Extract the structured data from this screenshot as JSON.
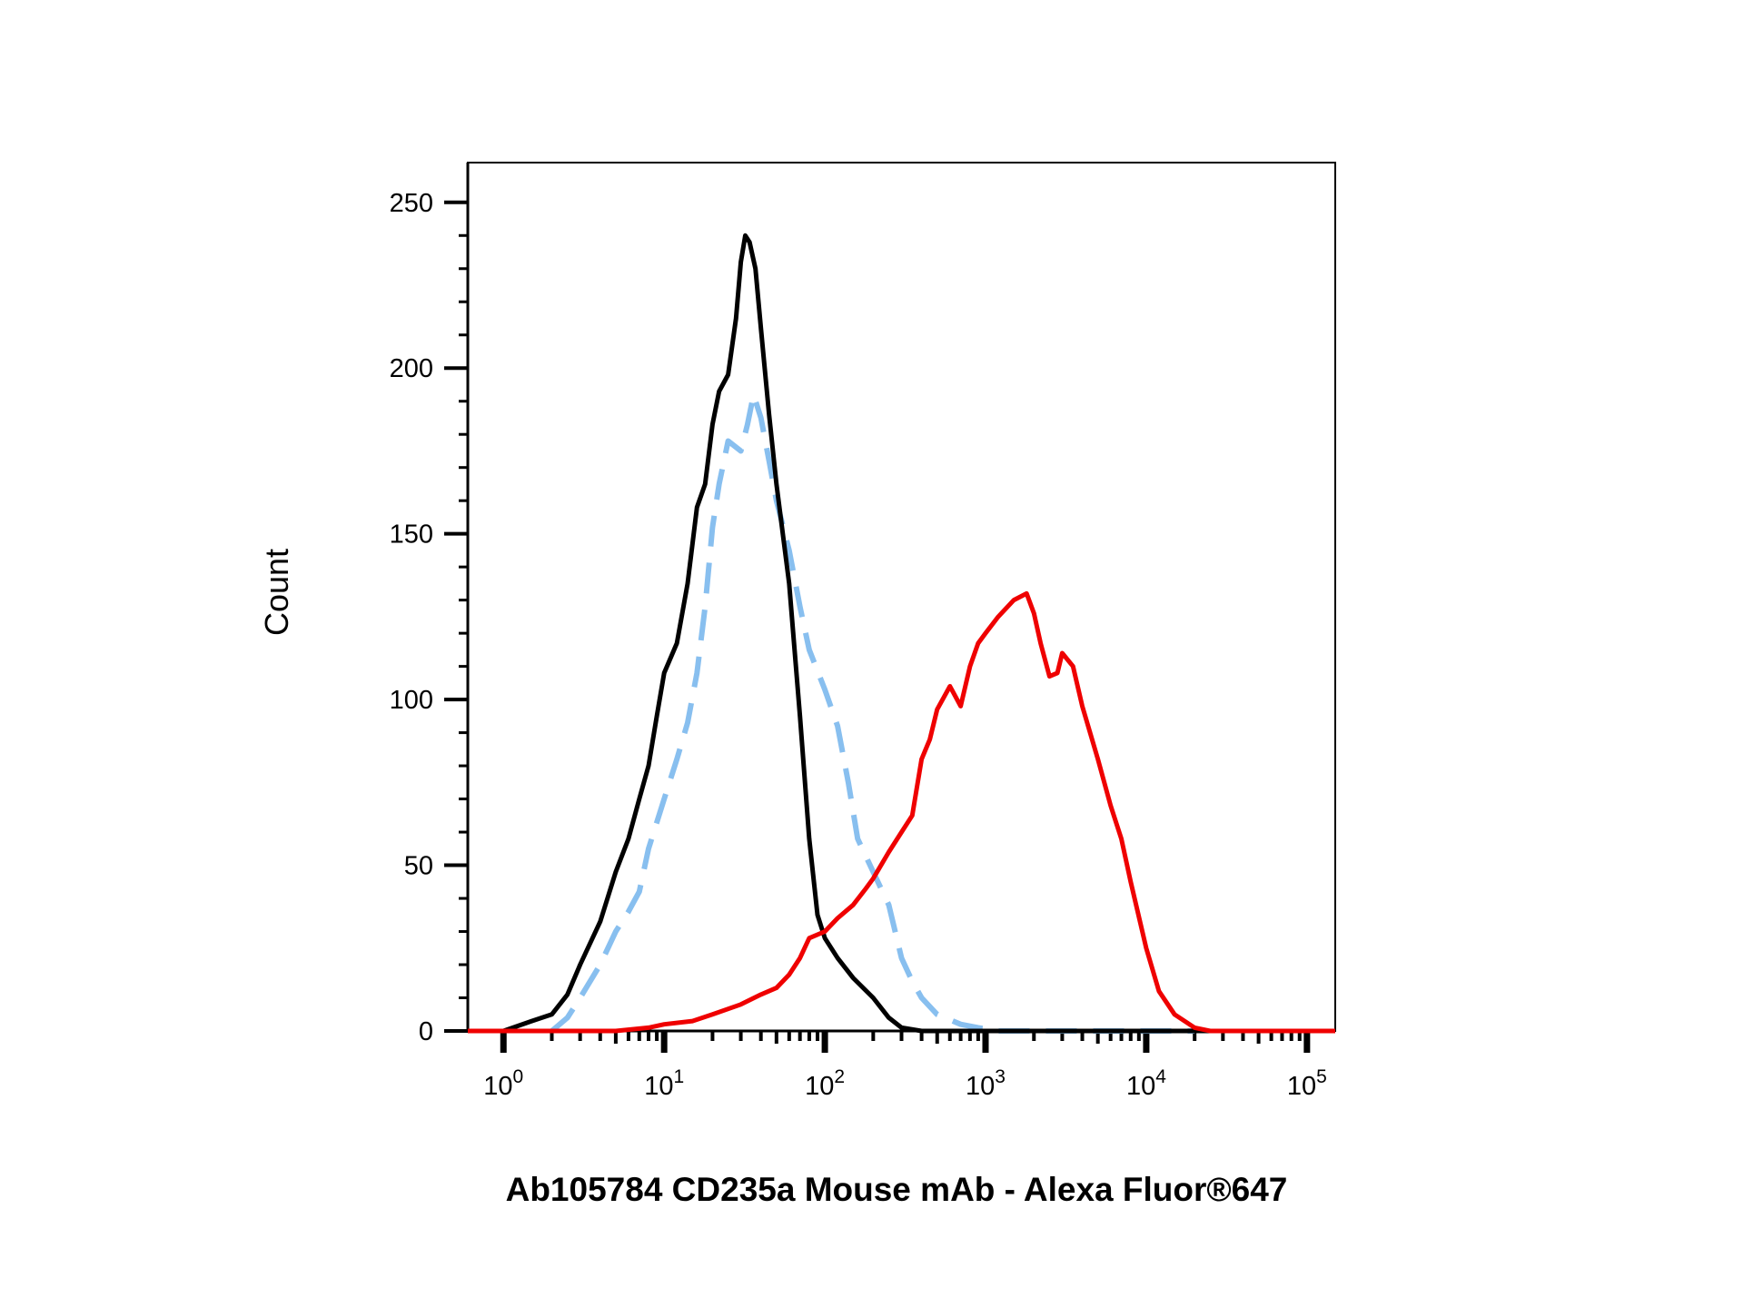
{
  "chart_data": {
    "type": "line",
    "title": "",
    "xlabel": "Ab105784 CD235a Mouse mAb - Alexa Fluor®647",
    "ylabel": "Count",
    "xscale": "log",
    "xlim": [
      0.6,
      150000
    ],
    "ylim": [
      0,
      262
    ],
    "grid": false,
    "legend": "none",
    "yticks": [
      {
        "value": 0,
        "label": "0"
      },
      {
        "value": 50,
        "label": "50"
      },
      {
        "value": 100,
        "label": "100"
      },
      {
        "value": 150,
        "label": "150"
      },
      {
        "value": 200,
        "label": "200"
      },
      {
        "value": 250,
        "label": "250"
      }
    ],
    "xticks": [
      {
        "value": 1,
        "base": "10",
        "exp": "0"
      },
      {
        "value": 10,
        "base": "10",
        "exp": "1"
      },
      {
        "value": 100,
        "base": "10",
        "exp": "2"
      },
      {
        "value": 1000,
        "base": "10",
        "exp": "3"
      },
      {
        "value": 10000,
        "base": "10",
        "exp": "4"
      },
      {
        "value": 100000,
        "base": "10",
        "exp": "5"
      }
    ],
    "series": [
      {
        "color": "#000000",
        "style": "solid",
        "points": [
          [
            0.6,
            0
          ],
          [
            1.0,
            0
          ],
          [
            1.5,
            3
          ],
          [
            2.0,
            5
          ],
          [
            2.5,
            11
          ],
          [
            3.0,
            20
          ],
          [
            4.0,
            33
          ],
          [
            5.0,
            48
          ],
          [
            6.0,
            58
          ],
          [
            7.0,
            70
          ],
          [
            8.0,
            80
          ],
          [
            9.0,
            95
          ],
          [
            10.0,
            108
          ],
          [
            12.0,
            117
          ],
          [
            14.0,
            135
          ],
          [
            16.0,
            158
          ],
          [
            18.0,
            165
          ],
          [
            20.0,
            183
          ],
          [
            22.0,
            193
          ],
          [
            25.0,
            198
          ],
          [
            28.0,
            215
          ],
          [
            30.0,
            232
          ],
          [
            32.0,
            240
          ],
          [
            34.0,
            238
          ],
          [
            37.0,
            230
          ],
          [
            40.0,
            212
          ],
          [
            45.0,
            186
          ],
          [
            50.0,
            165
          ],
          [
            60.0,
            135
          ],
          [
            70.0,
            95
          ],
          [
            80.0,
            58
          ],
          [
            90.0,
            35
          ],
          [
            100.0,
            28
          ],
          [
            120.0,
            22
          ],
          [
            150.0,
            16
          ],
          [
            200.0,
            10
          ],
          [
            250.0,
            4
          ],
          [
            300.0,
            1
          ],
          [
            400.0,
            0
          ],
          [
            150000,
            0
          ]
        ]
      },
      {
        "color": "#88bfef",
        "style": "dashed",
        "points": [
          [
            2.0,
            0
          ],
          [
            2.5,
            4
          ],
          [
            3.0,
            10
          ],
          [
            4.0,
            20
          ],
          [
            5.0,
            30
          ],
          [
            6.0,
            36
          ],
          [
            7.0,
            42
          ],
          [
            8.0,
            55
          ],
          [
            10.0,
            70
          ],
          [
            12.0,
            82
          ],
          [
            14.0,
            93
          ],
          [
            16.0,
            108
          ],
          [
            18.0,
            128
          ],
          [
            20.0,
            152
          ],
          [
            22.0,
            165
          ],
          [
            25.0,
            178
          ],
          [
            30.0,
            175
          ],
          [
            33.0,
            183
          ],
          [
            36.0,
            192
          ],
          [
            40.0,
            185
          ],
          [
            45.0,
            172
          ],
          [
            50.0,
            160
          ],
          [
            60.0,
            145
          ],
          [
            70.0,
            128
          ],
          [
            80.0,
            115
          ],
          [
            100.0,
            103
          ],
          [
            120.0,
            92
          ],
          [
            140.0,
            75
          ],
          [
            160.0,
            58
          ],
          [
            200.0,
            48
          ],
          [
            250.0,
            38
          ],
          [
            300.0,
            22
          ],
          [
            350.0,
            15
          ],
          [
            400.0,
            10
          ],
          [
            500.0,
            5
          ],
          [
            700.0,
            2
          ],
          [
            900.0,
            1
          ],
          [
            1200.0,
            0
          ],
          [
            20000,
            0
          ]
        ]
      },
      {
        "color": "#ef0000",
        "style": "solid",
        "points": [
          [
            0.6,
            0
          ],
          [
            5.0,
            0
          ],
          [
            8.0,
            1
          ],
          [
            10.0,
            2
          ],
          [
            15.0,
            3
          ],
          [
            20.0,
            5
          ],
          [
            30.0,
            8
          ],
          [
            40.0,
            11
          ],
          [
            50.0,
            13
          ],
          [
            60.0,
            17
          ],
          [
            70.0,
            22
          ],
          [
            80.0,
            28
          ],
          [
            100.0,
            30
          ],
          [
            120.0,
            34
          ],
          [
            150.0,
            38
          ],
          [
            180.0,
            43
          ],
          [
            200.0,
            46
          ],
          [
            250.0,
            54
          ],
          [
            300.0,
            60
          ],
          [
            350.0,
            65
          ],
          [
            400.0,
            82
          ],
          [
            450.0,
            88
          ],
          [
            500.0,
            97
          ],
          [
            600.0,
            104
          ],
          [
            700.0,
            98
          ],
          [
            800.0,
            110
          ],
          [
            900.0,
            117
          ],
          [
            1000.0,
            120
          ],
          [
            1200.0,
            125
          ],
          [
            1500.0,
            130
          ],
          [
            1800.0,
            132
          ],
          [
            2000.0,
            126
          ],
          [
            2200.0,
            117
          ],
          [
            2500.0,
            107
          ],
          [
            2800.0,
            108
          ],
          [
            3000.0,
            114
          ],
          [
            3500.0,
            110
          ],
          [
            4000.0,
            98
          ],
          [
            5000.0,
            82
          ],
          [
            6000.0,
            68
          ],
          [
            7000.0,
            58
          ],
          [
            8000.0,
            45
          ],
          [
            10000.0,
            25
          ],
          [
            12000.0,
            12
          ],
          [
            15000.0,
            5
          ],
          [
            20000.0,
            1
          ],
          [
            25000.0,
            0
          ],
          [
            150000,
            0
          ]
        ]
      }
    ]
  }
}
